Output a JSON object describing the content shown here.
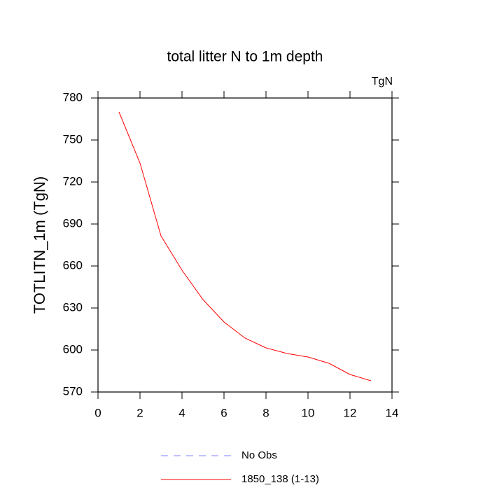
{
  "chart_data": {
    "type": "line",
    "title": "total litter N to 1m depth",
    "unit_label": "TgN",
    "ylabel": "TOTLITN_1m  (TgN)",
    "x": [
      1,
      2,
      3,
      4,
      5,
      6,
      7,
      8,
      9,
      10,
      11,
      12,
      13
    ],
    "series": [
      {
        "name": "1850_138 (1-13)",
        "color": "#ff0000",
        "values": [
          770,
          733.5,
          681.5,
          657,
          636,
          620,
          608.5,
          601.5,
          597.5,
          595,
          590.5,
          582.5,
          578
        ]
      }
    ],
    "legend_extra": [
      {
        "name": "No Obs",
        "color": "#8080ff",
        "dashed": true
      }
    ],
    "xlim": [
      0,
      14
    ],
    "xticks": [
      0,
      2,
      4,
      6,
      8,
      10,
      12,
      14
    ],
    "ylim": [
      570,
      780
    ],
    "yticks": [
      570,
      600,
      630,
      660,
      690,
      720,
      750,
      780
    ]
  }
}
